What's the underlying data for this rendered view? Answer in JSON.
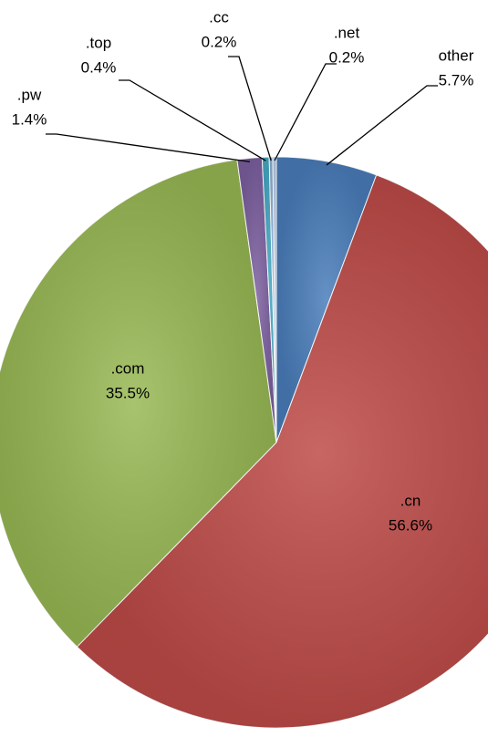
{
  "chart_data": {
    "type": "pie",
    "categories": [
      "other",
      ".cn",
      ".com",
      ".pw",
      ".top",
      ".cc",
      ".net"
    ],
    "values": [
      5.7,
      56.6,
      35.5,
      1.4,
      0.4,
      0.2,
      0.2
    ],
    "value_labels": [
      "5.7%",
      "56.6%",
      "35.5%",
      "1.4%",
      "0.4%",
      "0.2%",
      "0.2%"
    ],
    "colors": [
      "#4a7ebb",
      "#be4b48",
      "#98b954",
      "#7d60a0",
      "#46aac5",
      "#8fb4d8",
      "#b9cde5"
    ]
  }
}
